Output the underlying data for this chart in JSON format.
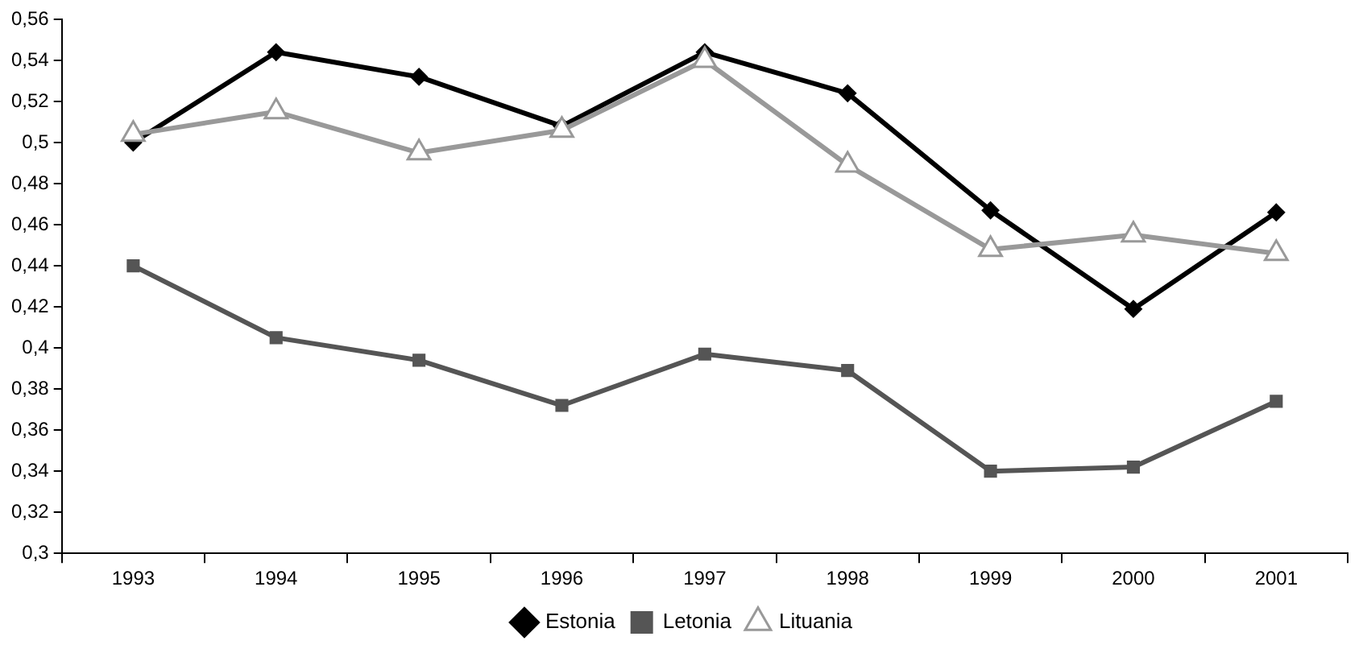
{
  "chart_data": {
    "type": "line",
    "categories": [
      "1993",
      "1994",
      "1995",
      "1996",
      "1997",
      "1998",
      "1999",
      "2000",
      "2001"
    ],
    "series": [
      {
        "name": "Estonia",
        "color": "#000000",
        "marker": "diamond",
        "values": [
          0.5,
          0.544,
          0.532,
          0.508,
          0.544,
          0.524,
          0.467,
          0.419,
          0.466
        ]
      },
      {
        "name": "Letonia",
        "color": "#555555",
        "marker": "square",
        "values": [
          0.44,
          0.405,
          0.394,
          0.372,
          0.397,
          0.389,
          0.34,
          0.342,
          0.374
        ]
      },
      {
        "name": "Lituania",
        "color": "#999999",
        "marker": "triangle",
        "values": [
          0.504,
          0.515,
          0.495,
          0.506,
          0.54,
          0.489,
          0.448,
          0.455,
          0.446
        ]
      }
    ],
    "ylim": [
      0.3,
      0.56
    ],
    "yticks": [
      {
        "value": 0.3,
        "label": "0,3"
      },
      {
        "value": 0.32,
        "label": "0,32"
      },
      {
        "value": 0.34,
        "label": "0,34"
      },
      {
        "value": 0.36,
        "label": "0,36"
      },
      {
        "value": 0.38,
        "label": "0,38"
      },
      {
        "value": 0.4,
        "label": "0,4"
      },
      {
        "value": 0.42,
        "label": "0,42"
      },
      {
        "value": 0.44,
        "label": "0,44"
      },
      {
        "value": 0.46,
        "label": "0,46"
      },
      {
        "value": 0.48,
        "label": "0,48"
      },
      {
        "value": 0.5,
        "label": "0,5"
      },
      {
        "value": 0.52,
        "label": "0,52"
      },
      {
        "value": 0.54,
        "label": "0,54"
      },
      {
        "value": 0.56,
        "label": "0,56"
      }
    ],
    "grid": false,
    "legend": "bottom",
    "line_style": "solid"
  }
}
